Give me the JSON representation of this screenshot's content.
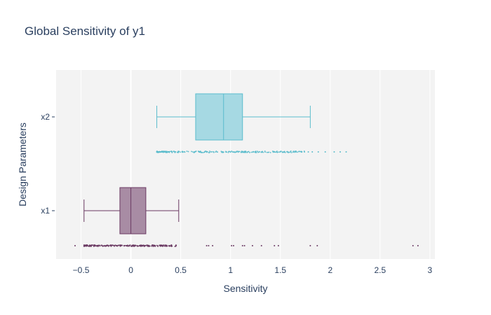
{
  "chart_data": {
    "type": "box",
    "orientation": "horizontal",
    "title": "Global Sensitivity of y1",
    "xlabel": "Sensitivity",
    "ylabel": "Design Parameters",
    "xlim": [
      -0.75,
      3.05
    ],
    "xticks": [
      -0.5,
      0,
      0.5,
      1,
      1.5,
      2,
      2.5,
      3
    ],
    "xtick_labels": [
      "−0.5",
      "0",
      "0.5",
      "1",
      "1.5",
      "2",
      "2.5",
      "3"
    ],
    "categories": [
      "x1",
      "x2"
    ],
    "grid": true,
    "series": [
      {
        "category": "x1",
        "color": "#6b3a63",
        "fill": "#a88ca4",
        "min": -0.47,
        "q1": -0.11,
        "median": 0.0,
        "q3": 0.15,
        "max": 0.48,
        "points_range": [
          -0.47,
          0.46
        ],
        "outliers": [
          -0.56,
          0.76,
          0.78,
          0.82,
          1.01,
          1.03,
          1.12,
          1.14,
          1.22,
          1.31,
          1.44,
          1.48,
          1.8,
          1.87,
          2.83,
          2.88
        ]
      },
      {
        "category": "x2",
        "color": "#5bbccc",
        "fill": "#a6d9e3",
        "min": 0.26,
        "q1": 0.65,
        "median": 0.93,
        "q3": 1.12,
        "max": 1.8,
        "points_range": [
          0.26,
          1.75
        ],
        "outliers": [
          1.78,
          1.82,
          1.88,
          1.95,
          2.04,
          2.1,
          2.16
        ]
      }
    ]
  }
}
